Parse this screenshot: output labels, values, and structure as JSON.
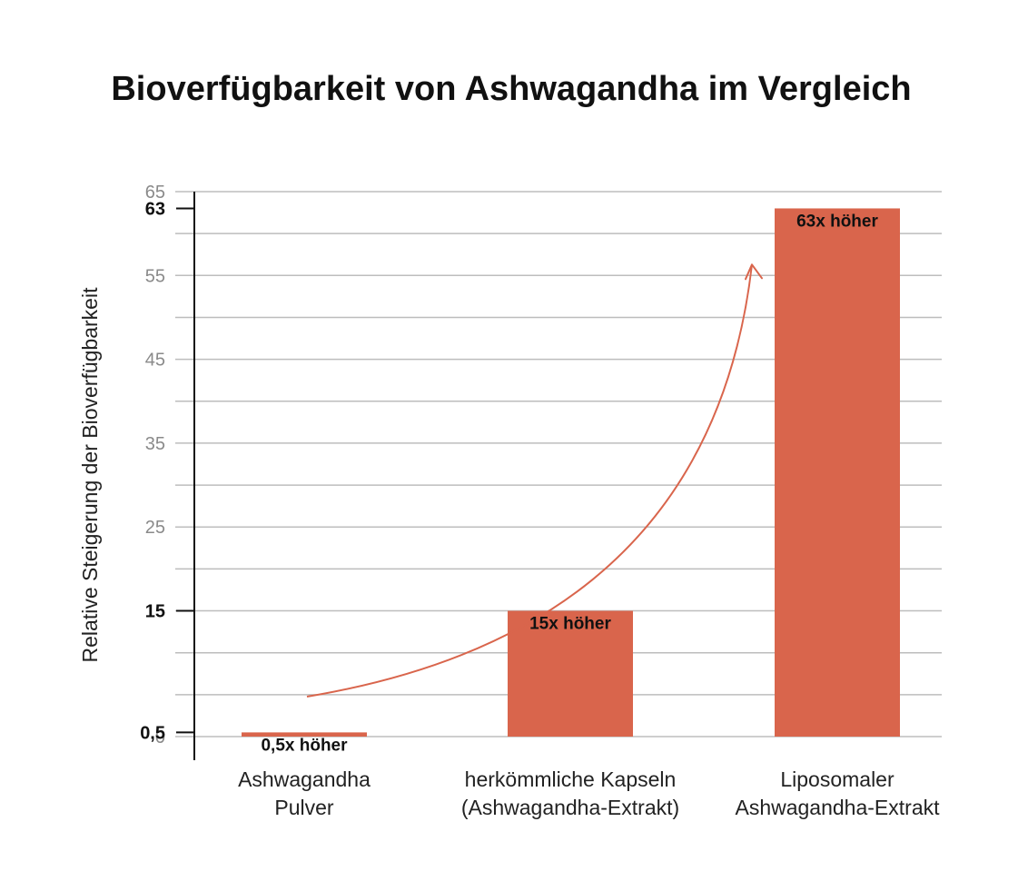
{
  "chart_data": {
    "type": "bar",
    "title": "Bioverfügbarkeit von Ashwagandha im Vergleich",
    "ylabel": "Relative Steigerung der Bioverfügbarkeit",
    "xlabel": "",
    "ylim": [
      0,
      65
    ],
    "grid": true,
    "categories": [
      [
        "Ashwagandha",
        "Pulver"
      ],
      [
        "herkömmliche Kapseln",
        "(Ashwagandha-Extrakt)"
      ],
      [
        "Liposomaler",
        "Ashwagandha-Extrakt"
      ]
    ],
    "values": [
      0.5,
      15,
      63
    ],
    "data_labels": [
      "0,5x höher",
      "15x höher",
      "63x höher"
    ],
    "gridlines": [
      0,
      5,
      10,
      15,
      20,
      25,
      30,
      35,
      40,
      45,
      50,
      55,
      60,
      65
    ],
    "yticks": [
      {
        "value": 0,
        "label": "0",
        "emphasis": false
      },
      {
        "value": 0.5,
        "label": "0,5",
        "emphasis": true
      },
      {
        "value": 15,
        "label": "15",
        "emphasis": true
      },
      {
        "value": 25,
        "label": "25",
        "emphasis": false
      },
      {
        "value": 35,
        "label": "35",
        "emphasis": false
      },
      {
        "value": 45,
        "label": "45",
        "emphasis": false
      },
      {
        "value": 55,
        "label": "55",
        "emphasis": false
      },
      {
        "value": 63,
        "label": "63",
        "emphasis": true
      },
      {
        "value": 65,
        "label": "65",
        "emphasis": false
      }
    ],
    "colors": {
      "bar": "#d9654c",
      "arrow": "#d9654c",
      "grid": "#bdbdbd",
      "axis": "#111111"
    },
    "annotation": {
      "type": "curved-arrow",
      "from_category": 0,
      "to_category": 2
    }
  }
}
